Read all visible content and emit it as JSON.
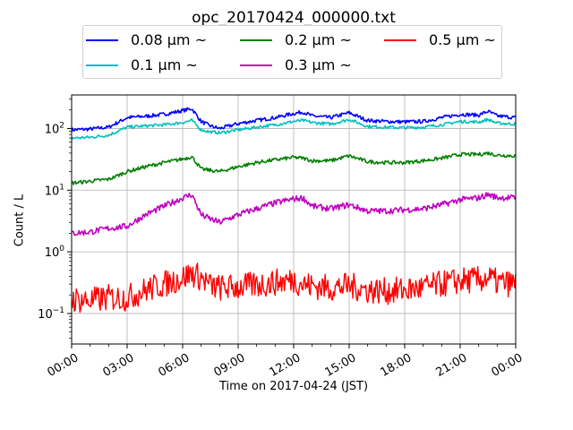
{
  "chart_data": {
    "type": "line",
    "title": "opc_20170424_000000.txt",
    "xlabel": "Time on 2017-04-24 (JST)",
    "ylabel": "Count / L",
    "yscale": "log",
    "ylim": [
      0.032,
      350
    ],
    "xlim": [
      "2017-04-24 00:00",
      "2017-04-25 00:00"
    ],
    "xticks": [
      "00:00",
      "03:00",
      "06:00",
      "09:00",
      "12:00",
      "15:00",
      "18:00",
      "21:00",
      "00:00"
    ],
    "yticks": [
      "10^-1",
      "10^0",
      "10^1",
      "10^2"
    ],
    "grid": true,
    "legend": {
      "position": "top-center",
      "columns": 3
    },
    "x_times": [
      "00:00",
      "01:00",
      "02:00",
      "03:00",
      "04:00",
      "05:00",
      "06:00",
      "06:30",
      "07:00",
      "07:30",
      "08:00",
      "09:00",
      "10:00",
      "11:00",
      "12:00",
      "12:30",
      "13:00",
      "14:00",
      "15:00",
      "16:00",
      "17:00",
      "18:00",
      "19:00",
      "20:00",
      "21:00",
      "22:00",
      "22:30",
      "23:00",
      "24:00"
    ],
    "series": [
      {
        "name": "0.08 μm ~",
        "color": "#0000ff",
        "values": [
          95,
          98,
          105,
          150,
          158,
          170,
          195,
          210,
          130,
          110,
          100,
          120,
          135,
          150,
          175,
          185,
          160,
          150,
          180,
          135,
          130,
          128,
          130,
          150,
          170,
          165,
          190,
          160,
          150
        ]
      },
      {
        "name": "0.1 μm ~",
        "color": "#00bfbf",
        "values": [
          70,
          72,
          78,
          105,
          110,
          115,
          125,
          135,
          95,
          88,
          85,
          95,
          105,
          115,
          130,
          135,
          125,
          118,
          140,
          108,
          105,
          103,
          105,
          115,
          130,
          127,
          140,
          122,
          118
        ]
      },
      {
        "name": "0.2 μm ~",
        "color": "#008000",
        "values": [
          13,
          14,
          15,
          20,
          24,
          28,
          32,
          35,
          22,
          21,
          20,
          24,
          28,
          31,
          34,
          33,
          30,
          30,
          36,
          29,
          28,
          28,
          30,
          33,
          38,
          38,
          40,
          37,
          36
        ]
      },
      {
        "name": "0.3 μm ~",
        "color": "#bf00bf",
        "values": [
          2.0,
          2.1,
          2.4,
          2.6,
          4.0,
          5.5,
          7.5,
          8.5,
          4.0,
          3.4,
          3.0,
          4.0,
          5.0,
          6.2,
          7.2,
          7.5,
          5.5,
          5.0,
          5.8,
          4.6,
          4.6,
          4.8,
          5.0,
          5.8,
          7.0,
          7.5,
          8.5,
          7.6,
          7.5
        ]
      },
      {
        "name": "0.5 μm ~",
        "color": "#ff0000",
        "values": [
          0.17,
          0.16,
          0.18,
          0.18,
          0.24,
          0.3,
          0.38,
          0.45,
          0.38,
          0.28,
          0.26,
          0.27,
          0.29,
          0.32,
          0.35,
          0.3,
          0.28,
          0.26,
          0.28,
          0.24,
          0.23,
          0.24,
          0.26,
          0.3,
          0.34,
          0.35,
          0.38,
          0.32,
          0.3
        ]
      }
    ]
  }
}
